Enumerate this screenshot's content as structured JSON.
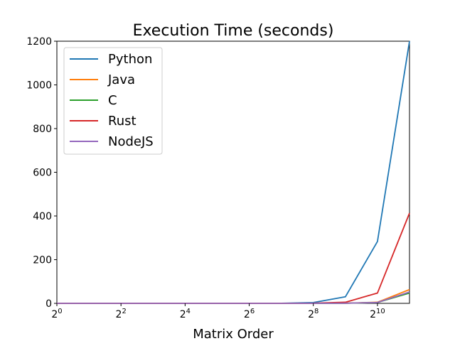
{
  "chart_data": {
    "type": "line",
    "title": "Execution Time (seconds)",
    "xlabel": "Matrix Order",
    "ylabel": "",
    "x_scale": "log2",
    "x": [
      1,
      2,
      4,
      8,
      16,
      32,
      64,
      128,
      256,
      512,
      1024,
      2048
    ],
    "xlim": [
      1,
      2048
    ],
    "ylim": [
      0,
      1200
    ],
    "x_ticks": [
      {
        "base": "2",
        "exp": "0"
      },
      {
        "base": "2",
        "exp": "2"
      },
      {
        "base": "2",
        "exp": "4"
      },
      {
        "base": "2",
        "exp": "6"
      },
      {
        "base": "2",
        "exp": "8"
      },
      {
        "base": "2",
        "exp": "10"
      }
    ],
    "y_ticks": [
      "0",
      "200",
      "400",
      "600",
      "800",
      "1000",
      "1200"
    ],
    "grid": false,
    "legend_position": "top-left",
    "series": [
      {
        "name": "Python",
        "color": "#1f77b4",
        "values": [
          0,
          0,
          0,
          0,
          0,
          0,
          0.1,
          0.5,
          3.5,
          30,
          283,
          1200
        ]
      },
      {
        "name": "Java",
        "color": "#ff7f0e",
        "values": [
          0,
          0,
          0,
          0,
          0,
          0,
          0,
          0,
          0.1,
          0.6,
          5,
          63
        ]
      },
      {
        "name": "C",
        "color": "#2ca02c",
        "values": [
          0,
          0,
          0,
          0,
          0,
          0,
          0,
          0,
          0.1,
          0.5,
          4,
          47
        ]
      },
      {
        "name": "Rust",
        "color": "#d62728",
        "values": [
          0,
          0,
          0,
          0,
          0,
          0,
          0,
          0.1,
          0.8,
          5,
          47,
          413
        ]
      },
      {
        "name": "NodeJS",
        "color": "#9467bd",
        "values": [
          0,
          0,
          0,
          0,
          0,
          0,
          0,
          0,
          0.1,
          0.6,
          4,
          52
        ]
      }
    ]
  }
}
